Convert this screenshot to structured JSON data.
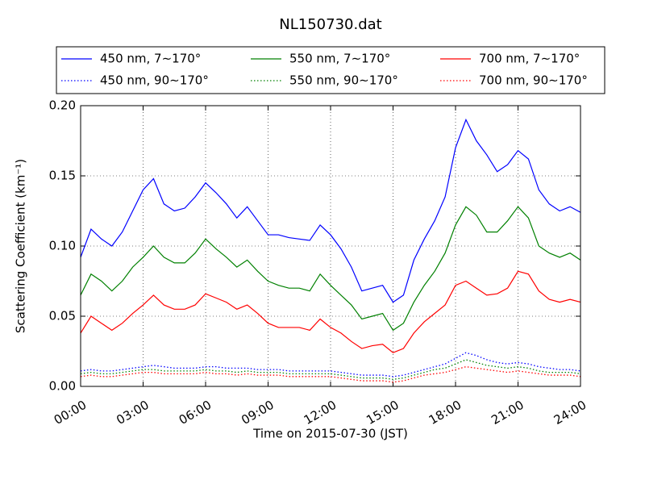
{
  "chart_data": {
    "type": "line",
    "title": "NL150730.dat",
    "xlabel": "Time on 2015-07-30 (JST)",
    "ylabel": "Scattering Coefficient (km⁻¹)",
    "grid": true,
    "legend": "top",
    "legend_columns": 3,
    "xlim": [
      0,
      24
    ],
    "ylim": [
      0,
      0.2
    ],
    "xticks": [
      {
        "value": 0,
        "label": "00:00"
      },
      {
        "value": 3,
        "label": "03:00"
      },
      {
        "value": 6,
        "label": "06:00"
      },
      {
        "value": 9,
        "label": "09:00"
      },
      {
        "value": 12,
        "label": "12:00"
      },
      {
        "value": 15,
        "label": "15:00"
      },
      {
        "value": 18,
        "label": "18:00"
      },
      {
        "value": 21,
        "label": "21:00"
      },
      {
        "value": 24,
        "label": "24:00"
      }
    ],
    "yticks": [
      {
        "value": 0,
        "label": "0.00"
      },
      0.05,
      {
        "value": 0.1,
        "label": "0.10"
      },
      0.15,
      {
        "value": 0.2,
        "label": "0.20"
      }
    ],
    "x": [
      0,
      0.5,
      1,
      1.5,
      2,
      2.5,
      3,
      3.5,
      4,
      4.5,
      5,
      5.5,
      6,
      6.5,
      7,
      7.5,
      8,
      8.5,
      9,
      9.5,
      10,
      10.5,
      11,
      11.5,
      12,
      12.5,
      13,
      13.5,
      14,
      14.5,
      15,
      15.5,
      16,
      16.5,
      17,
      17.5,
      18,
      18.5,
      19,
      19.5,
      20,
      20.5,
      21,
      21.5,
      22,
      22.5,
      23,
      23.5,
      24
    ],
    "series": [
      {
        "name": "450 nm, 7∼170°",
        "color": "#0000ff",
        "style": "solid",
        "values": [
          0.092,
          0.112,
          0.105,
          0.1,
          0.11,
          0.125,
          0.14,
          0.148,
          0.13,
          0.125,
          0.127,
          0.135,
          0.145,
          0.138,
          0.13,
          0.12,
          0.128,
          0.118,
          0.108,
          0.108,
          0.106,
          0.105,
          0.104,
          0.115,
          0.108,
          0.098,
          0.085,
          0.068,
          0.07,
          0.072,
          0.06,
          0.065,
          0.09,
          0.105,
          0.118,
          0.135,
          0.17,
          0.19,
          0.175,
          0.165,
          0.153,
          0.158,
          0.168,
          0.162,
          0.14,
          0.13,
          0.125,
          0.128,
          0.124
        ]
      },
      {
        "name": "450 nm, 90∼170°",
        "color": "#0000ff",
        "style": "dotted",
        "values": [
          0.011,
          0.012,
          0.011,
          0.011,
          0.012,
          0.013,
          0.014,
          0.015,
          0.014,
          0.013,
          0.013,
          0.013,
          0.014,
          0.014,
          0.013,
          0.013,
          0.013,
          0.012,
          0.012,
          0.012,
          0.011,
          0.011,
          0.011,
          0.011,
          0.011,
          0.01,
          0.009,
          0.008,
          0.008,
          0.008,
          0.007,
          0.008,
          0.01,
          0.012,
          0.014,
          0.016,
          0.02,
          0.024,
          0.022,
          0.019,
          0.017,
          0.016,
          0.017,
          0.016,
          0.014,
          0.013,
          0.012,
          0.012,
          0.011
        ]
      },
      {
        "name": "550 nm, 7∼170°",
        "color": "#008000",
        "style": "solid",
        "values": [
          0.065,
          0.08,
          0.075,
          0.068,
          0.075,
          0.085,
          0.092,
          0.1,
          0.092,
          0.088,
          0.088,
          0.095,
          0.105,
          0.098,
          0.092,
          0.085,
          0.09,
          0.082,
          0.075,
          0.072,
          0.07,
          0.07,
          0.068,
          0.08,
          0.072,
          0.065,
          0.058,
          0.048,
          0.05,
          0.052,
          0.04,
          0.045,
          0.06,
          0.072,
          0.082,
          0.095,
          0.115,
          0.128,
          0.122,
          0.11,
          0.11,
          0.118,
          0.128,
          0.12,
          0.1,
          0.095,
          0.092,
          0.095,
          0.09
        ]
      },
      {
        "name": "550 nm, 90∼170°",
        "color": "#008000",
        "style": "dotted",
        "values": [
          0.009,
          0.01,
          0.009,
          0.009,
          0.01,
          0.011,
          0.012,
          0.012,
          0.011,
          0.011,
          0.011,
          0.011,
          0.012,
          0.011,
          0.011,
          0.01,
          0.011,
          0.01,
          0.01,
          0.01,
          0.009,
          0.009,
          0.009,
          0.009,
          0.009,
          0.008,
          0.007,
          0.006,
          0.006,
          0.006,
          0.005,
          0.006,
          0.008,
          0.01,
          0.012,
          0.013,
          0.016,
          0.019,
          0.017,
          0.015,
          0.014,
          0.013,
          0.014,
          0.013,
          0.011,
          0.01,
          0.01,
          0.01,
          0.009
        ]
      },
      {
        "name": "700 nm, 7∼170°",
        "color": "#ff0000",
        "style": "solid",
        "values": [
          0.038,
          0.05,
          0.045,
          0.04,
          0.045,
          0.052,
          0.058,
          0.065,
          0.058,
          0.055,
          0.055,
          0.058,
          0.066,
          0.063,
          0.06,
          0.055,
          0.058,
          0.052,
          0.045,
          0.042,
          0.042,
          0.042,
          0.04,
          0.048,
          0.042,
          0.038,
          0.032,
          0.027,
          0.029,
          0.03,
          0.024,
          0.027,
          0.038,
          0.046,
          0.052,
          0.058,
          0.072,
          0.075,
          0.07,
          0.065,
          0.066,
          0.07,
          0.082,
          0.08,
          0.068,
          0.062,
          0.06,
          0.062,
          0.06
        ]
      },
      {
        "name": "700 nm, 90∼170°",
        "color": "#ff0000",
        "style": "dotted",
        "values": [
          0.007,
          0.008,
          0.007,
          0.007,
          0.008,
          0.009,
          0.01,
          0.01,
          0.009,
          0.009,
          0.009,
          0.009,
          0.01,
          0.009,
          0.009,
          0.008,
          0.009,
          0.008,
          0.008,
          0.008,
          0.007,
          0.007,
          0.007,
          0.007,
          0.007,
          0.006,
          0.005,
          0.004,
          0.004,
          0.004,
          0.003,
          0.004,
          0.006,
          0.008,
          0.009,
          0.01,
          0.012,
          0.014,
          0.013,
          0.012,
          0.011,
          0.01,
          0.011,
          0.01,
          0.009,
          0.008,
          0.008,
          0.008,
          0.007
        ]
      }
    ]
  }
}
